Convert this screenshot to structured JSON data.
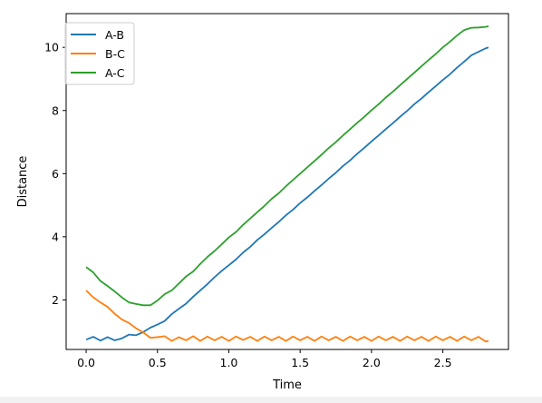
{
  "chart_data": {
    "type": "line",
    "title": "",
    "xlabel": "Time",
    "ylabel": "Distance",
    "xlim": [
      -0.14,
      2.96
    ],
    "ylim": [
      0.43,
      11.07
    ],
    "xticks": [
      0.0,
      0.5,
      1.0,
      1.5,
      2.0,
      2.5
    ],
    "xtick_labels": [
      "0.0",
      "0.5",
      "1.0",
      "1.5",
      "2.0",
      "2.5"
    ],
    "yticks": [
      2,
      4,
      6,
      8,
      10
    ],
    "ytick_labels": [
      "2",
      "4",
      "6",
      "8",
      "10"
    ],
    "grid": false,
    "legend_position": "upper-left",
    "x": [
      0.0,
      0.05,
      0.1,
      0.15,
      0.2,
      0.25,
      0.3,
      0.35,
      0.4,
      0.45,
      0.5,
      0.55,
      0.6,
      0.65,
      0.7,
      0.75,
      0.8,
      0.85,
      0.9,
      0.95,
      1.0,
      1.05,
      1.1,
      1.15,
      1.2,
      1.25,
      1.3,
      1.35,
      1.4,
      1.45,
      1.5,
      1.55,
      1.6,
      1.65,
      1.7,
      1.75,
      1.8,
      1.85,
      1.9,
      1.95,
      2.0,
      2.05,
      2.1,
      2.15,
      2.2,
      2.25,
      2.3,
      2.35,
      2.4,
      2.45,
      2.5,
      2.55,
      2.6,
      2.65,
      2.7,
      2.75,
      2.8,
      2.82
    ],
    "series": [
      {
        "name": "A-B",
        "color": "#1f77b4",
        "values": [
          0.74,
          0.83,
          0.71,
          0.82,
          0.72,
          0.78,
          0.9,
          0.88,
          0.98,
          1.12,
          1.22,
          1.33,
          1.55,
          1.72,
          1.88,
          2.1,
          2.3,
          2.5,
          2.72,
          2.92,
          3.1,
          3.28,
          3.5,
          3.68,
          3.9,
          4.08,
          4.28,
          4.47,
          4.68,
          4.86,
          5.07,
          5.25,
          5.45,
          5.64,
          5.84,
          6.03,
          6.24,
          6.42,
          6.63,
          6.82,
          7.02,
          7.21,
          7.41,
          7.6,
          7.8,
          7.99,
          8.2,
          8.38,
          8.58,
          8.77,
          8.97,
          9.15,
          9.36,
          9.55,
          9.75,
          9.86,
          9.97,
          10.0
        ]
      },
      {
        "name": "B-C",
        "color": "#ff7f0e",
        "values": [
          2.3,
          2.08,
          1.92,
          1.78,
          1.56,
          1.38,
          1.27,
          1.1,
          0.97,
          0.8,
          0.82,
          0.85,
          0.7,
          0.82,
          0.72,
          0.85,
          0.7,
          0.84,
          0.72,
          0.83,
          0.7,
          0.84,
          0.73,
          0.83,
          0.7,
          0.84,
          0.72,
          0.83,
          0.7,
          0.84,
          0.72,
          0.83,
          0.7,
          0.84,
          0.72,
          0.83,
          0.7,
          0.84,
          0.72,
          0.83,
          0.7,
          0.84,
          0.72,
          0.83,
          0.7,
          0.84,
          0.72,
          0.83,
          0.7,
          0.84,
          0.72,
          0.83,
          0.7,
          0.84,
          0.72,
          0.83,
          0.68,
          0.7
        ]
      },
      {
        "name": "A-C",
        "color": "#2ca02c",
        "values": [
          3.04,
          2.87,
          2.6,
          2.44,
          2.27,
          2.08,
          1.92,
          1.87,
          1.83,
          1.83,
          1.98,
          2.18,
          2.3,
          2.52,
          2.74,
          2.9,
          3.14,
          3.36,
          3.55,
          3.76,
          3.98,
          4.15,
          4.38,
          4.58,
          4.78,
          4.98,
          5.2,
          5.38,
          5.6,
          5.8,
          6.0,
          6.2,
          6.4,
          6.6,
          6.81,
          7.0,
          7.21,
          7.41,
          7.61,
          7.8,
          8.01,
          8.2,
          8.41,
          8.6,
          8.8,
          9.0,
          9.2,
          9.4,
          9.6,
          9.79,
          10.0,
          10.18,
          10.38,
          10.55,
          10.62,
          10.63,
          10.65,
          10.67
        ]
      }
    ]
  }
}
